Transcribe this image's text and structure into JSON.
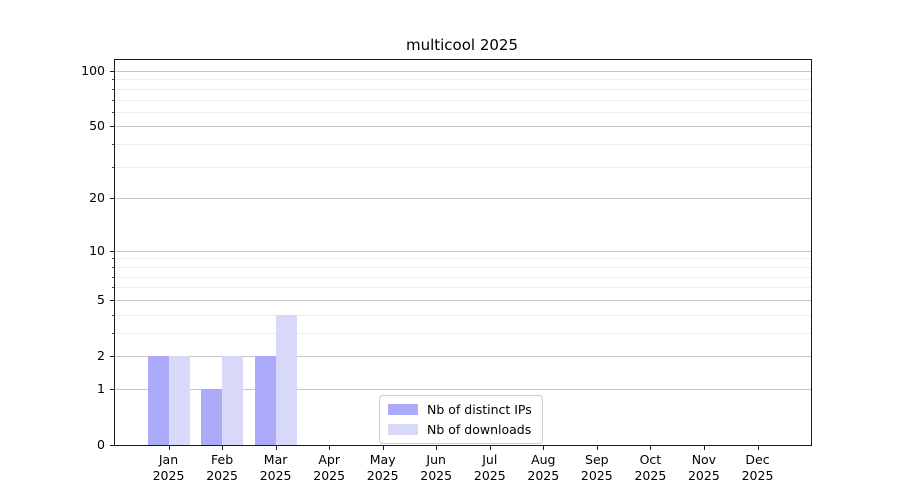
{
  "title": "multicool 2025",
  "chart_data": {
    "type": "bar",
    "title": "multicool 2025",
    "categories": [
      "Jan",
      "Feb",
      "Mar",
      "Apr",
      "May",
      "Jun",
      "Jul",
      "Aug",
      "Sep",
      "Oct",
      "Nov",
      "Dec"
    ],
    "year_label": "2025",
    "series": [
      {
        "name": "Nb of distinct IPs",
        "values": [
          2,
          1,
          2,
          0,
          0,
          0,
          0,
          0,
          0,
          0,
          0,
          0
        ],
        "color": "#aaaaf8"
      },
      {
        "name": "Nb of downloads",
        "values": [
          2,
          2,
          4,
          0,
          0,
          0,
          0,
          0,
          0,
          0,
          0,
          0
        ],
        "color": "#d8d8f8"
      }
    ],
    "yscale": "log1p",
    "yticks": [
      0,
      1,
      2,
      5,
      10,
      20,
      50,
      100
    ],
    "minor_yticks": [
      3,
      4,
      6,
      7,
      8,
      9,
      30,
      40,
      60,
      70,
      80,
      90
    ],
    "ylim": [
      0,
      114.6
    ],
    "xlabel": "",
    "ylabel": "",
    "grid": "horizontal",
    "legend_position": "lower-center"
  },
  "colors": {
    "axis": "#1a1a1a",
    "grid_major": "#c6c6c6",
    "grid_minor": "#ededed",
    "legend_border": "#cccccc",
    "background": "#ffffff"
  }
}
